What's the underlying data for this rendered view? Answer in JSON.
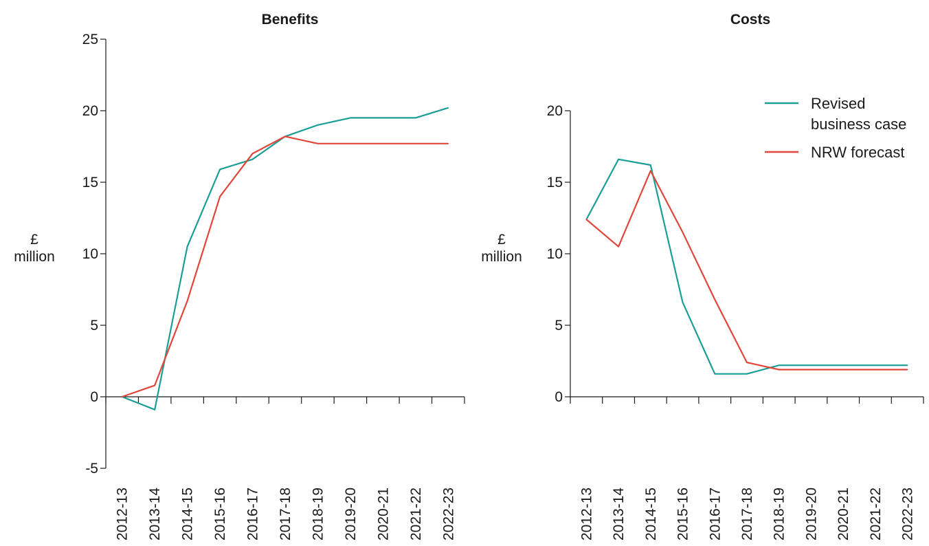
{
  "colors": {
    "revised": "#1a9e96",
    "nrw": "#e0463a",
    "axis": "#1a1a1a"
  },
  "legend": [
    {
      "key": "revised",
      "lines": [
        "Revised",
        "business case"
      ]
    },
    {
      "key": "nrw",
      "lines": [
        "NRW forecast"
      ]
    }
  ],
  "chart_data": [
    {
      "type": "line",
      "title": "Benefits",
      "ylabel": [
        "£",
        "million"
      ],
      "ylim": [
        -5,
        25
      ],
      "yticks": [
        -5,
        0,
        5,
        10,
        15,
        20,
        25
      ],
      "ytick_labels": [
        "-5",
        "0",
        "5",
        "10",
        "15",
        "20",
        "25"
      ],
      "categories": [
        "2012-13",
        "2013-14",
        "2014-15",
        "2015-16",
        "2016-17",
        "2017-18",
        "2018-19",
        "2019-20",
        "2020-21",
        "2021-22",
        "2022-23"
      ],
      "series": [
        {
          "key": "revised",
          "name": "Revised business case",
          "values": [
            0,
            -0.9,
            10.5,
            15.9,
            16.6,
            18.2,
            19.0,
            19.5,
            19.5,
            19.5,
            20.2
          ]
        },
        {
          "key": "nrw",
          "name": "NRW forecast",
          "values": [
            0,
            0.8,
            6.7,
            14.0,
            17.0,
            18.2,
            17.7,
            17.7,
            17.7,
            17.7,
            17.7
          ]
        }
      ]
    },
    {
      "type": "line",
      "title": "Costs",
      "ylabel": [
        "£",
        "million"
      ],
      "ylim": [
        0,
        20
      ],
      "yticks": [
        0,
        5,
        10,
        15,
        20
      ],
      "ytick_labels": [
        "0",
        "5",
        "10",
        "15",
        "20"
      ],
      "categories": [
        "2012-13",
        "2013-14",
        "2014-15",
        "2015-16",
        "2016-17",
        "2017-18",
        "2018-19",
        "2019-20",
        "2020-21",
        "2021-22",
        "2022-23"
      ],
      "series": [
        {
          "key": "revised",
          "name": "Revised business case",
          "values": [
            12.4,
            16.6,
            16.2,
            6.6,
            1.6,
            1.6,
            2.2,
            2.2,
            2.2,
            2.2,
            2.2
          ]
        },
        {
          "key": "nrw",
          "name": "NRW forecast",
          "values": [
            12.4,
            10.5,
            15.8,
            11.5,
            6.8,
            2.4,
            1.9,
            1.9,
            1.9,
            1.9,
            1.9
          ]
        }
      ]
    }
  ]
}
